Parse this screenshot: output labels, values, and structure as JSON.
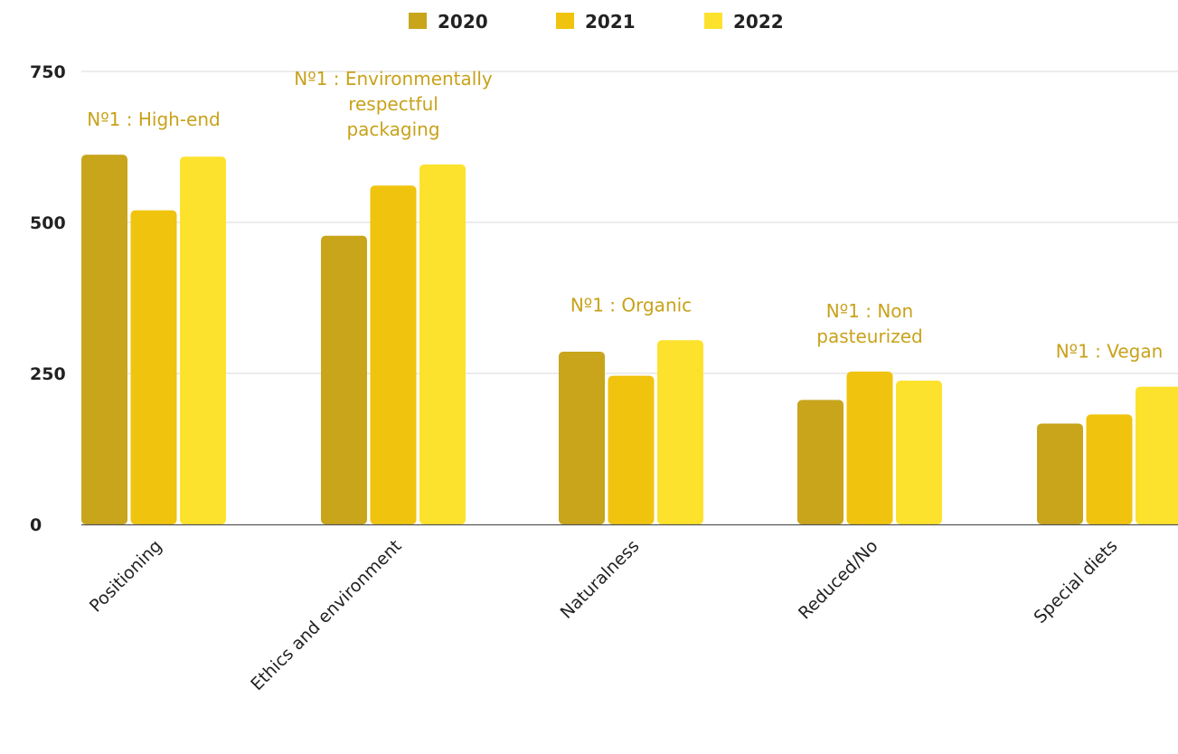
{
  "chart_data": {
    "type": "bar",
    "categories": [
      "Positioning",
      "Ethics and environment",
      "Naturalness",
      "Reduced/No",
      "Special diets"
    ],
    "series": [
      {
        "name": "2020",
        "color": "#c8a51b",
        "values": [
          612,
          478,
          286,
          206,
          167
        ]
      },
      {
        "name": "2021",
        "color": "#f0c30e",
        "values": [
          520,
          561,
          246,
          253,
          182
        ]
      },
      {
        "name": "2022",
        "color": "#fde22d",
        "values": [
          609,
          596,
          305,
          238,
          228
        ]
      }
    ],
    "ylim": [
      0,
      750
    ],
    "yticks": [
      0,
      250,
      500,
      750
    ],
    "grid": true,
    "legend": "top-center",
    "annotation_color": "#c8a21a",
    "annotations": [
      {
        "category": "Positioning",
        "lines": [
          "Nº1 : High-end"
        ]
      },
      {
        "category": "Ethics and environment",
        "lines": [
          "Nº1 : Environmentally",
          "respectful",
          "packaging"
        ]
      },
      {
        "category": "Naturalness",
        "lines": [
          "Nº1 : Organic"
        ]
      },
      {
        "category": "Reduced/No",
        "lines": [
          "Nº1 : Non",
          "pasteurized"
        ]
      },
      {
        "category": "Special diets",
        "lines": [
          "Nº1 : Vegan"
        ]
      }
    ]
  }
}
